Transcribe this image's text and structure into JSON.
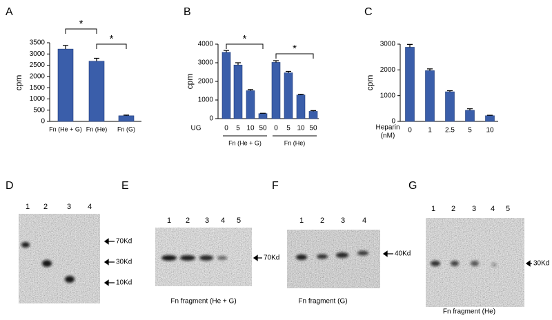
{
  "chart_data": [
    {
      "panel": "A",
      "type": "bar",
      "ylabel": "cpm",
      "categories": [
        "Fn (He + G)",
        "Fn (He)",
        "Fn (G)"
      ],
      "values": [
        3220,
        2680,
        250
      ],
      "errors": [
        160,
        130,
        30
      ],
      "color": "#3a5eaa",
      "ylim": [
        0,
        3500
      ],
      "yticks": [
        0,
        500,
        1000,
        1500,
        2000,
        2500,
        3000,
        3500
      ],
      "annotations": [
        "*",
        "*"
      ]
    },
    {
      "panel": "B",
      "type": "bar",
      "ylabel": "cpm",
      "xlabel": "UG",
      "categories": [
        "0",
        "5",
        "10",
        "50",
        "0",
        "5",
        "10",
        "50"
      ],
      "groups": [
        "Fn (He + G)",
        "Fn (He)"
      ],
      "values": [
        3560,
        2880,
        1500,
        270,
        3020,
        2460,
        1270,
        390
      ],
      "errors": [
        100,
        120,
        60,
        20,
        90,
        80,
        40,
        40
      ],
      "color": "#3a5eaa",
      "ylim": [
        0,
        4000
      ],
      "yticks": [
        0,
        1000,
        2000,
        3000,
        4000
      ],
      "annotations": [
        "*",
        "*"
      ]
    },
    {
      "panel": "C",
      "type": "bar",
      "ylabel": "cpm",
      "xlabel": [
        "Heparin",
        "(nM)"
      ],
      "categories": [
        "0",
        "1",
        "2.5",
        "5",
        "10"
      ],
      "values": [
        2880,
        1970,
        1150,
        430,
        220
      ],
      "errors": [
        110,
        70,
        40,
        60,
        20
      ],
      "color": "#3a5eaa",
      "ylim": [
        0,
        3000
      ],
      "yticks": [
        0,
        1000,
        2000,
        3000
      ]
    }
  ],
  "gels": [
    {
      "panel": "D",
      "lanes": [
        "1",
        "2",
        "3",
        "4"
      ],
      "markers": [
        "70Kd",
        "30Kd",
        "10Kd"
      ]
    },
    {
      "panel": "E",
      "lanes": [
        "1",
        "2",
        "3",
        "4",
        "5"
      ],
      "markers": [
        "70Kd"
      ],
      "caption": "Fn fragment (He + G)"
    },
    {
      "panel": "F",
      "lanes": [
        "1",
        "2",
        "3",
        "4"
      ],
      "markers": [
        "40Kd"
      ],
      "caption": "Fn fragment (G)"
    },
    {
      "panel": "G",
      "lanes": [
        "1",
        "2",
        "3",
        "4",
        "5"
      ],
      "markers": [
        "30Kd"
      ],
      "caption": "Fn fragment (He)"
    }
  ]
}
